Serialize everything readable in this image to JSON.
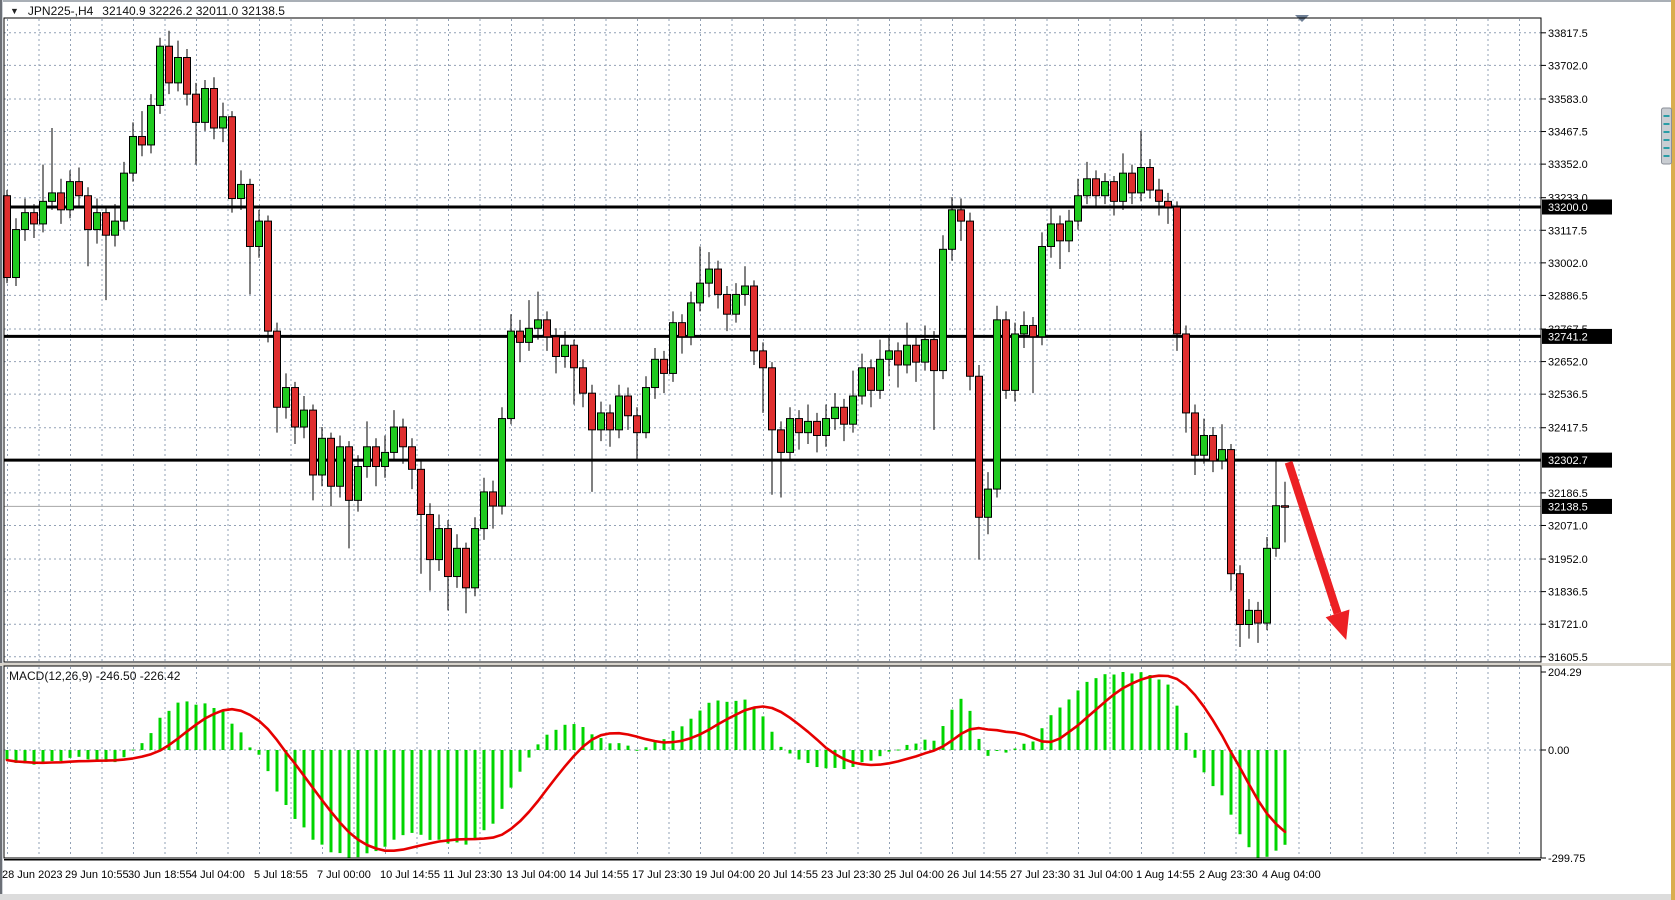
{
  "window": {
    "symbol": "JPN225-,H4",
    "ohlc": "32140.9 32226.2 32011.0 32138.5"
  },
  "icons": {
    "dropdown": "▼"
  },
  "colors": {
    "up": "#1fca1f",
    "down": "#df2f2f",
    "wick": "#000000",
    "grid": "#92a1b5",
    "hline": "#000000",
    "current_price_line": "#a6a6a6",
    "macd_hist": "#00d400",
    "macd_signal": "#e60000",
    "arrow": "#ec2024",
    "axis_box_bg": "#000000",
    "axis_box_text": "#ffffff",
    "edge_accent": "#d9ae4e",
    "scroll_thumb_dash": "#2a9da6"
  },
  "chart_data": {
    "type": "candlestick",
    "symbol": "JPN225-",
    "timeframe": "H4",
    "price_axis": {
      "decimals": 1,
      "labels": [
        33817.5,
        33702.0,
        33583.0,
        33467.5,
        33352.0,
        33233.0,
        33117.5,
        33002.0,
        32886.5,
        32767.5,
        32652.0,
        32536.5,
        32417.5,
        32186.5,
        32071.0,
        31952.0,
        31836.5,
        31721.0,
        31605.5
      ],
      "current_price": 32138.5
    },
    "hlines": [
      {
        "price": 33200.0,
        "label": "33200.0"
      },
      {
        "price": 32741.2,
        "label": "32741.2"
      },
      {
        "price": 32302.7,
        "label": "32302.7"
      }
    ],
    "time_axis": [
      {
        "t": "28 Jun 2023",
        "bar": 0
      },
      {
        "t": "29 Jun 10:55",
        "bar": 7
      },
      {
        "t": "30 Jun 18:55",
        "bar": 14
      },
      {
        "t": "4 Jul 04:00",
        "bar": 21
      },
      {
        "t": "5 Jul 18:55",
        "bar": 28
      },
      {
        "t": "7 Jul 00:00",
        "bar": 35
      },
      {
        "t": "10 Jul 14:55",
        "bar": 42
      },
      {
        "t": "11 Jul 23:30",
        "bar": 49
      },
      {
        "t": "13 Jul 04:00",
        "bar": 56
      },
      {
        "t": "14 Jul 14:55",
        "bar": 63
      },
      {
        "t": "17 Jul 23:30",
        "bar": 70
      },
      {
        "t": "19 Jul 04:00",
        "bar": 77
      },
      {
        "t": "20 Jul 14:55",
        "bar": 84
      },
      {
        "t": "23 Jul 23:30",
        "bar": 91
      },
      {
        "t": "25 Jul 04:00",
        "bar": 98
      },
      {
        "t": "26 Jul 14:55",
        "bar": 105
      },
      {
        "t": "27 Jul 23:30",
        "bar": 112
      },
      {
        "t": "31 Jul 04:00",
        "bar": 119
      },
      {
        "t": "1 Aug 14:55",
        "bar": 126
      },
      {
        "t": "2 Aug 23:30",
        "bar": 133
      },
      {
        "t": "4 Aug 04:00",
        "bar": 140
      }
    ],
    "candles": [
      [
        33240,
        33260,
        32930,
        32950
      ],
      [
        32950,
        33160,
        32920,
        33120
      ],
      [
        33120,
        33230,
        33080,
        33180
      ],
      [
        33180,
        33210,
        33090,
        33140
      ],
      [
        33140,
        33350,
        33110,
        33220
      ],
      [
        33220,
        33480,
        33190,
        33250
      ],
      [
        33250,
        33300,
        33140,
        33190
      ],
      [
        33190,
        33330,
        33160,
        33290
      ],
      [
        33290,
        33340,
        33200,
        33240
      ],
      [
        33240,
        33270,
        32990,
        33120
      ],
      [
        33120,
        33230,
        33070,
        33180
      ],
      [
        33180,
        33200,
        32870,
        33100
      ],
      [
        33100,
        33210,
        33060,
        33150
      ],
      [
        33150,
        33360,
        33120,
        33320
      ],
      [
        33320,
        33500,
        33290,
        33450
      ],
      [
        33450,
        33540,
        33380,
        33420
      ],
      [
        33420,
        33600,
        33390,
        33560
      ],
      [
        33560,
        33800,
        33530,
        33770
      ],
      [
        33770,
        33825,
        33600,
        33640
      ],
      [
        33640,
        33790,
        33610,
        33730
      ],
      [
        33730,
        33760,
        33560,
        33600
      ],
      [
        33600,
        33640,
        33350,
        33500
      ],
      [
        33500,
        33650,
        33470,
        33620
      ],
      [
        33620,
        33660,
        33440,
        33480
      ],
      [
        33480,
        33570,
        33430,
        33520
      ],
      [
        33520,
        33540,
        33180,
        33230
      ],
      [
        33230,
        33330,
        33190,
        33280
      ],
      [
        33280,
        33300,
        32890,
        33060
      ],
      [
        33060,
        33190,
        33020,
        33150
      ],
      [
        33150,
        33170,
        32720,
        32760
      ],
      [
        32760,
        32790,
        32400,
        32490
      ],
      [
        32490,
        32610,
        32450,
        32560
      ],
      [
        32560,
        32580,
        32360,
        32420
      ],
      [
        32420,
        32530,
        32380,
        32480
      ],
      [
        32480,
        32500,
        32160,
        32250
      ],
      [
        32250,
        32420,
        32210,
        32380
      ],
      [
        32380,
        32400,
        32140,
        32210
      ],
      [
        32210,
        32390,
        32170,
        32350
      ],
      [
        32350,
        32370,
        31990,
        32160
      ],
      [
        32160,
        32320,
        32120,
        32280
      ],
      [
        32280,
        32440,
        32240,
        32350
      ],
      [
        32350,
        32380,
        32210,
        32280
      ],
      [
        32280,
        32390,
        32240,
        32330
      ],
      [
        32330,
        32480,
        32300,
        32420
      ],
      [
        32420,
        32450,
        32290,
        32350
      ],
      [
        32350,
        32380,
        32200,
        32270
      ],
      [
        32270,
        32300,
        31900,
        32110
      ],
      [
        32110,
        32150,
        31840,
        31950
      ],
      [
        31950,
        32110,
        31910,
        32060
      ],
      [
        32060,
        32090,
        31770,
        31890
      ],
      [
        31890,
        32040,
        31850,
        31990
      ],
      [
        31990,
        32010,
        31760,
        31850
      ],
      [
        31850,
        32100,
        31820,
        32060
      ],
      [
        32060,
        32240,
        32020,
        32190
      ],
      [
        32190,
        32230,
        32060,
        32140
      ],
      [
        32140,
        32490,
        32110,
        32450
      ],
      [
        32450,
        32820,
        32430,
        32760
      ],
      [
        32760,
        32800,
        32650,
        32720
      ],
      [
        32720,
        32870,
        32690,
        32770
      ],
      [
        32770,
        32900,
        32730,
        32800
      ],
      [
        32800,
        32830,
        32690,
        32740
      ],
      [
        32740,
        32770,
        32610,
        32670
      ],
      [
        32670,
        32760,
        32630,
        32710
      ],
      [
        32710,
        32730,
        32500,
        32630
      ],
      [
        32630,
        32660,
        32490,
        32540
      ],
      [
        32540,
        32570,
        32190,
        32410
      ],
      [
        32410,
        32510,
        32370,
        32470
      ],
      [
        32470,
        32500,
        32350,
        32410
      ],
      [
        32410,
        32570,
        32380,
        32530
      ],
      [
        32530,
        32560,
        32410,
        32460
      ],
      [
        32460,
        32490,
        32300,
        32400
      ],
      [
        32400,
        32600,
        32380,
        32560
      ],
      [
        32560,
        32700,
        32520,
        32660
      ],
      [
        32660,
        32690,
        32540,
        32610
      ],
      [
        32610,
        32830,
        32580,
        32790
      ],
      [
        32790,
        32820,
        32680,
        32740
      ],
      [
        32740,
        32900,
        32710,
        32860
      ],
      [
        32860,
        33060,
        32830,
        32930
      ],
      [
        32930,
        33040,
        32880,
        32980
      ],
      [
        32980,
        33010,
        32840,
        32890
      ],
      [
        32890,
        32920,
        32760,
        32820
      ],
      [
        32820,
        32930,
        32790,
        32890
      ],
      [
        32890,
        32990,
        32850,
        32920
      ],
      [
        32920,
        32940,
        32640,
        32690
      ],
      [
        32690,
        32720,
        32470,
        32630
      ],
      [
        32630,
        32650,
        32180,
        32410
      ],
      [
        32410,
        32440,
        32170,
        32330
      ],
      [
        32330,
        32490,
        32300,
        32450
      ],
      [
        32450,
        32480,
        32340,
        32400
      ],
      [
        32400,
        32500,
        32360,
        32440
      ],
      [
        32440,
        32470,
        32330,
        32390
      ],
      [
        32390,
        32500,
        32350,
        32450
      ],
      [
        32450,
        32540,
        32410,
        32490
      ],
      [
        32490,
        32520,
        32370,
        32430
      ],
      [
        32430,
        32620,
        32400,
        32530
      ],
      [
        32530,
        32680,
        32500,
        32630
      ],
      [
        32630,
        32660,
        32490,
        32550
      ],
      [
        32550,
        32730,
        32520,
        32660
      ],
      [
        32660,
        32740,
        32600,
        32690
      ],
      [
        32690,
        32720,
        32560,
        32640
      ],
      [
        32640,
        32790,
        32610,
        32710
      ],
      [
        32710,
        32740,
        32580,
        32650
      ],
      [
        32650,
        32780,
        32620,
        32730
      ],
      [
        32730,
        32760,
        32410,
        32620
      ],
      [
        32620,
        33100,
        32590,
        33050
      ],
      [
        33050,
        33235,
        33010,
        33190
      ],
      [
        33190,
        33230,
        33080,
        33150
      ],
      [
        33150,
        33180,
        32550,
        32600
      ],
      [
        32600,
        32640,
        31950,
        32100
      ],
      [
        32100,
        32260,
        32040,
        32200
      ],
      [
        32200,
        32850,
        32170,
        32800
      ],
      [
        32800,
        32830,
        32520,
        32550
      ],
      [
        32550,
        32790,
        32510,
        32750
      ],
      [
        32750,
        32830,
        32700,
        32780
      ],
      [
        32780,
        32810,
        32540,
        32740
      ],
      [
        32740,
        33110,
        32710,
        33060
      ],
      [
        33060,
        33200,
        33020,
        33140
      ],
      [
        33140,
        33170,
        32980,
        33080
      ],
      [
        33080,
        33190,
        33040,
        33150
      ],
      [
        33150,
        33300,
        33120,
        33240
      ],
      [
        33240,
        33360,
        33210,
        33300
      ],
      [
        33300,
        33330,
        33200,
        33240
      ],
      [
        33240,
        33320,
        33210,
        33290
      ],
      [
        33290,
        33310,
        33170,
        33220
      ],
      [
        33220,
        33390,
        33190,
        33320
      ],
      [
        33320,
        33350,
        33210,
        33250
      ],
      [
        33250,
        33470,
        33220,
        33340
      ],
      [
        33340,
        33370,
        33230,
        33260
      ],
      [
        33260,
        33300,
        33170,
        33220
      ],
      [
        33220,
        33250,
        33140,
        33200
      ],
      [
        33200,
        33220,
        32690,
        32750
      ],
      [
        32750,
        32780,
        32400,
        32470
      ],
      [
        32470,
        32500,
        32250,
        32320
      ],
      [
        32320,
        32450,
        32290,
        32390
      ],
      [
        32390,
        32420,
        32260,
        32300
      ],
      [
        32300,
        32430,
        32270,
        32340
      ],
      [
        32340,
        32360,
        31840,
        31900
      ],
      [
        31900,
        31930,
        31640,
        31720
      ],
      [
        31720,
        31810,
        31670,
        31770
      ],
      [
        31770,
        31800,
        31655,
        31725
      ],
      [
        31725,
        32030,
        31700,
        31990
      ],
      [
        31990,
        32305,
        31960,
        32141
      ],
      [
        32140.9,
        32226.2,
        32011.0,
        32138.5
      ]
    ],
    "macd": {
      "display": "MACD(12,26,9) -246.50 -226.42",
      "label": "MACD(12,26,9)",
      "macd_value": "-246.50",
      "signal_value": "-226.42",
      "params": {
        "fast": 12,
        "slow": 26,
        "signal": 9
      },
      "axis_max": "204.29",
      "axis_zero": "0.00",
      "axis_min": "-299.75"
    },
    "annotations": {
      "arrow": {
        "from_bar": 142.4,
        "from_price": 32295,
        "to_bar": 148.8,
        "to_price": 31665
      }
    }
  }
}
